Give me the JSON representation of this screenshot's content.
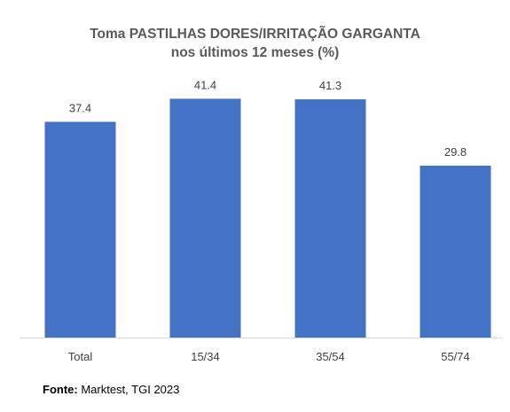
{
  "chart_data": {
    "type": "bar",
    "title": "Toma PASTILHAS DORES/IRRITAÇÃO GARGANTA",
    "subtitle": "nos últimos 12 meses (%)",
    "categories": [
      "Total",
      "15/34",
      "35/54",
      "55/74"
    ],
    "values": [
      37.4,
      41.4,
      41.3,
      29.8
    ],
    "ylim": [
      0,
      45
    ],
    "grid": false,
    "legend": "none",
    "bar_color": "#4472C4",
    "label_color": "#404040"
  },
  "source": {
    "label": "Fonte:",
    "text": " Marktest, TGI 2023"
  }
}
